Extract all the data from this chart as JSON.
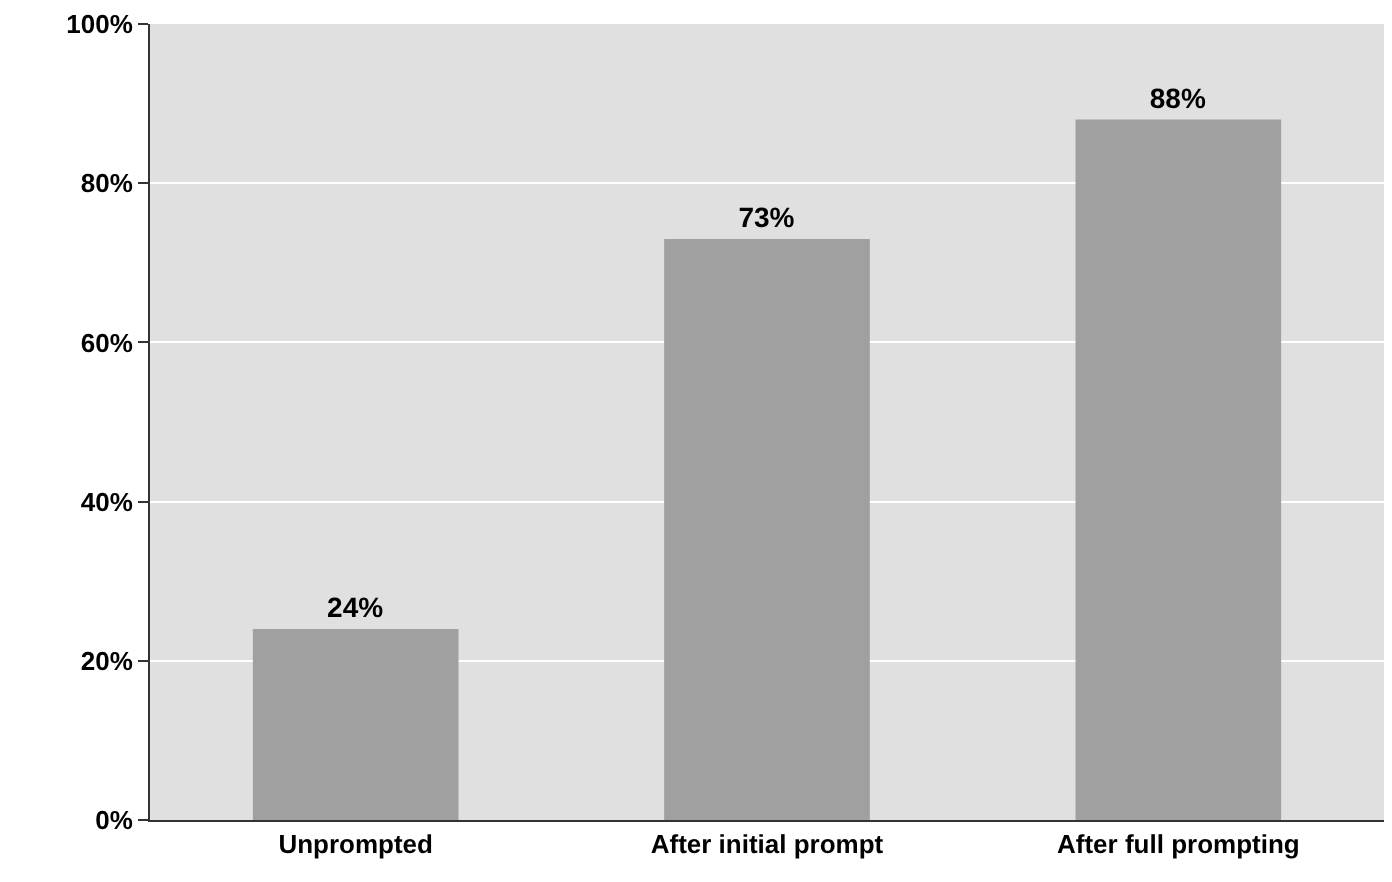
{
  "chart_data": {
    "type": "bar",
    "categories": [
      "Unprompted",
      "After initial prompt",
      "After full prompting"
    ],
    "values": [
      24,
      73,
      88
    ],
    "value_labels": [
      "24%",
      "73%",
      "88%"
    ],
    "color": "#a0a0a0",
    "ylim": [
      0,
      100
    ],
    "yticks": [
      {
        "value": 0,
        "label": "0%"
      },
      {
        "value": 20,
        "label": "20%"
      },
      {
        "value": 40,
        "label": "40%"
      },
      {
        "value": 60,
        "label": "60%"
      },
      {
        "value": 80,
        "label": "80%"
      },
      {
        "value": 100,
        "label": "100%"
      }
    ],
    "grid": "y"
  }
}
